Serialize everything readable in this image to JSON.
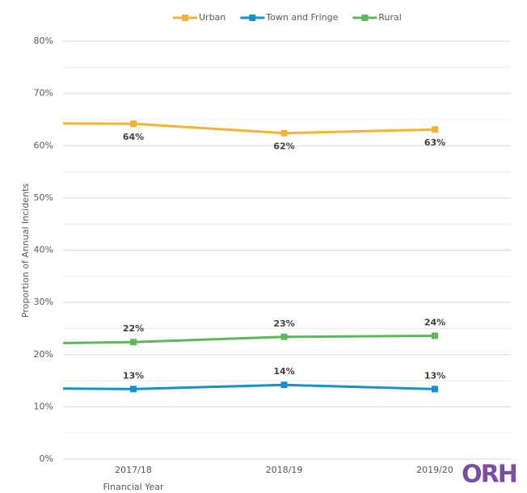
{
  "chart_data": {
    "type": "line",
    "categories": [
      null,
      "2017/18",
      "2018/19",
      "2019/20"
    ],
    "x_label": "Financial Year",
    "y_label": "Proportion of Annual Incidents",
    "series": [
      {
        "name": "Urban",
        "color": "#f5b335",
        "values": [
          64.3,
          64.2,
          62.4,
          63.1
        ],
        "value_labels": [
          null,
          "64%",
          "62%",
          "63%"
        ],
        "label_position": "below"
      },
      {
        "name": "Town and Fringe",
        "color": "#1591d0",
        "values": [
          13.6,
          13.4,
          14.2,
          13.4
        ],
        "value_labels": [
          null,
          "13%",
          "14%",
          "13%"
        ],
        "label_position": "above"
      },
      {
        "name": "Rural",
        "color": "#5bb85d",
        "values": [
          22.0,
          22.4,
          23.4,
          23.6
        ],
        "value_labels": [
          null,
          "22%",
          "23%",
          "24%"
        ],
        "label_position": "above"
      }
    ],
    "ylim": [
      0,
      80
    ],
    "yticks": [
      {
        "value": 0,
        "label": "0%"
      },
      {
        "value": 10,
        "label": "10%"
      },
      {
        "value": 20,
        "label": "20%"
      },
      {
        "value": 30,
        "label": "30%"
      },
      {
        "value": 40,
        "label": "40%"
      },
      {
        "value": 50,
        "label": "50%"
      },
      {
        "value": 60,
        "label": "60%"
      },
      {
        "value": 70,
        "label": "70%"
      },
      {
        "value": 80,
        "label": "80%"
      }
    ],
    "minor_yticks": [
      5,
      15,
      25,
      35,
      45,
      55,
      65,
      75
    ],
    "grid": true,
    "legend": "top",
    "logo": "ORH"
  }
}
